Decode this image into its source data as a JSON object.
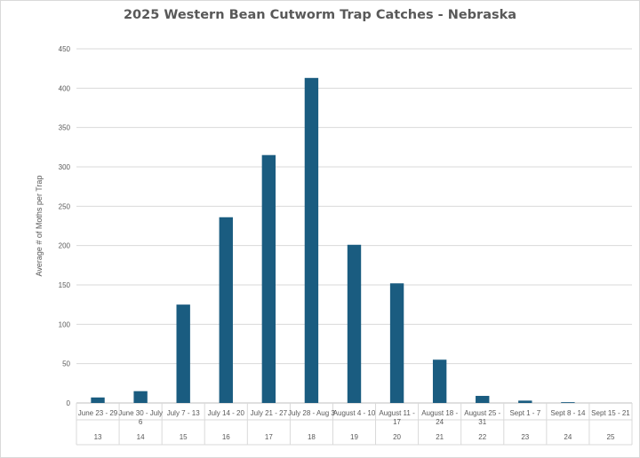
{
  "chart_data": {
    "type": "bar",
    "title": "2025 Western Bean Cutworm Trap Catches - Nebraska",
    "ylabel": "Average # of Moths per Trap",
    "xlabel": "",
    "ylim": [
      0,
      450
    ],
    "yticks": [
      0,
      50,
      100,
      150,
      200,
      250,
      300,
      350,
      400,
      450
    ],
    "grid": true,
    "legend": "none",
    "bar_color": "#1a5c80",
    "categories": [
      [
        "June 23 - 29"
      ],
      [
        "June 30 - July",
        "6"
      ],
      [
        "July 7 - 13"
      ],
      [
        "July 14 - 20"
      ],
      [
        "July 21 - 27"
      ],
      [
        "July 28 - Aug 3"
      ],
      [
        "August 4 - 10"
      ],
      [
        "August 11 -",
        "17"
      ],
      [
        "August 18 -",
        "24"
      ],
      [
        "August 25 -",
        "31"
      ],
      [
        "Sept 1 - 7"
      ],
      [
        "Sept 8 - 14"
      ],
      [
        "Sept 15 - 21"
      ]
    ],
    "week_numbers": [
      "13",
      "14",
      "15",
      "16",
      "17",
      "18",
      "19",
      "20",
      "21",
      "22",
      "23",
      "24",
      "25"
    ],
    "values": [
      7,
      15,
      125,
      236,
      315,
      413,
      201,
      152,
      55,
      9,
      3,
      1,
      0
    ]
  }
}
